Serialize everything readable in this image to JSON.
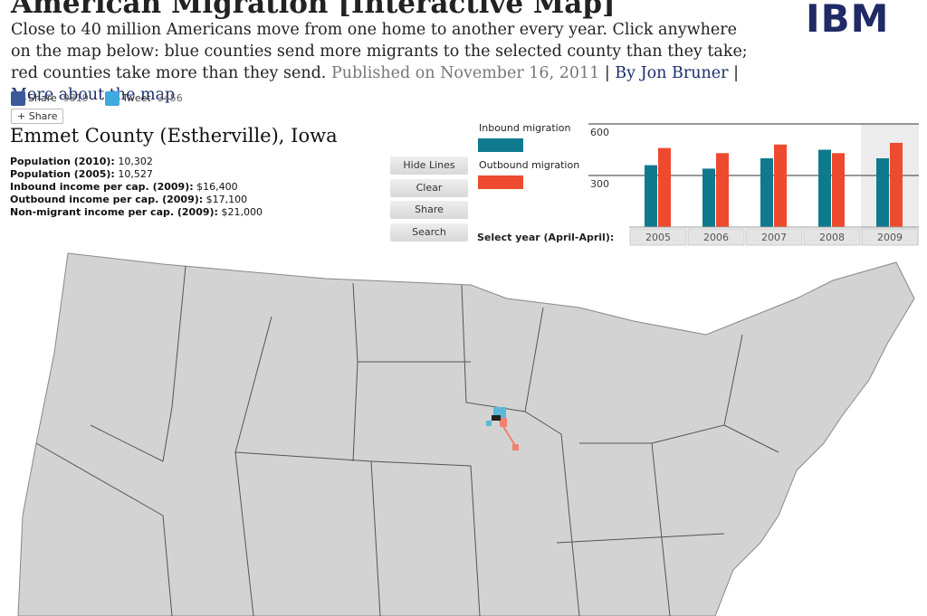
{
  "header": {
    "title": "American Migration [Interactive Map]",
    "intro": "Close to 40 million Americans move from one home to another every year. Click anywhere on the map below: blue counties send more migrants to the selected county than they take; red counties take more than they send.",
    "published": "Published on November 16, 2011",
    "separator": "|",
    "author": "By Jon Bruner",
    "more": "More about the map",
    "logo": "IBM"
  },
  "social": {
    "share": "Share",
    "share_count": "9819",
    "tweet": "Tweet",
    "tweet_count": "3456",
    "plus_share": "+ Share"
  },
  "county": {
    "name": "Emmet County (Estherville), Iowa",
    "stats": [
      {
        "label": "Population (2010):",
        "value": "10,302"
      },
      {
        "label": "Population (2005):",
        "value": "10,527"
      },
      {
        "label": "Inbound income per cap. (2009):",
        "value": "$16,400"
      },
      {
        "label": "Outbound income per cap. (2009):",
        "value": "$17,100"
      },
      {
        "label": "Non-migrant income per cap. (2009):",
        "value": "$21,000"
      }
    ]
  },
  "buttons": [
    "Hide Lines",
    "Clear",
    "Share",
    "Search"
  ],
  "chart_data": {
    "type": "bar",
    "x_label": "Select year (April-April):",
    "categories": [
      "2005",
      "2006",
      "2007",
      "2008",
      "2009"
    ],
    "series": [
      {
        "name": "Inbound migration",
        "color": "#0f7a8e",
        "values": [
          360,
          340,
          400,
          450,
          400
        ]
      },
      {
        "name": "Outbound migration",
        "color": "#ee4a2f",
        "values": [
          460,
          430,
          480,
          430,
          490
        ]
      }
    ],
    "ylim": [
      0,
      600
    ],
    "yticks": [
      300,
      600
    ],
    "grid": true
  }
}
